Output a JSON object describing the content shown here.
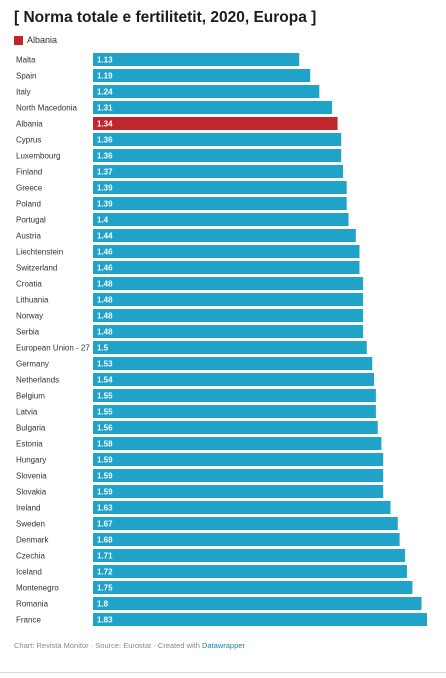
{
  "title": "[ Norma totale e fertilitetit, 2020, Europa ]",
  "legend": {
    "label": "Albania",
    "color": "#c0262b"
  },
  "colors": {
    "default_bar": "#1fa3c9",
    "highlight_bar": "#c0262b",
    "value_text": "#ffffff"
  },
  "footer": {
    "text": "Chart: Revista Monitor · Source: Eurostat · Created with ",
    "link": "Datawrapper"
  },
  "chart_data": {
    "type": "bar",
    "orientation": "horizontal",
    "categories": [
      "Malta",
      "Spain",
      "Italy",
      "North Macedonia",
      "Albania",
      "Cyprus",
      "Luxembourg",
      "Finland",
      "Greece",
      "Poland",
      "Portugal",
      "Austria",
      "Liechtenstein",
      "Switzerland",
      "Croatia",
      "Lithuania",
      "Norway",
      "Serbia",
      "European Union - 27",
      "Germany",
      "Netherlands",
      "Belgium",
      "Latvia",
      "Bulgaria",
      "Estonia",
      "Hungary",
      "Slovenia",
      "Slovakia",
      "Ireland",
      "Sweden",
      "Denmark",
      "Czechia",
      "Iceland",
      "Montenegro",
      "Romania",
      "France"
    ],
    "values": [
      1.13,
      1.19,
      1.24,
      1.31,
      1.34,
      1.36,
      1.36,
      1.37,
      1.39,
      1.39,
      1.4,
      1.44,
      1.46,
      1.46,
      1.48,
      1.48,
      1.48,
      1.48,
      1.5,
      1.53,
      1.54,
      1.55,
      1.55,
      1.56,
      1.58,
      1.59,
      1.59,
      1.59,
      1.63,
      1.67,
      1.68,
      1.71,
      1.72,
      1.75,
      1.8,
      1.83
    ],
    "highlight": "Albania",
    "xlim": [
      0,
      1.83
    ]
  }
}
